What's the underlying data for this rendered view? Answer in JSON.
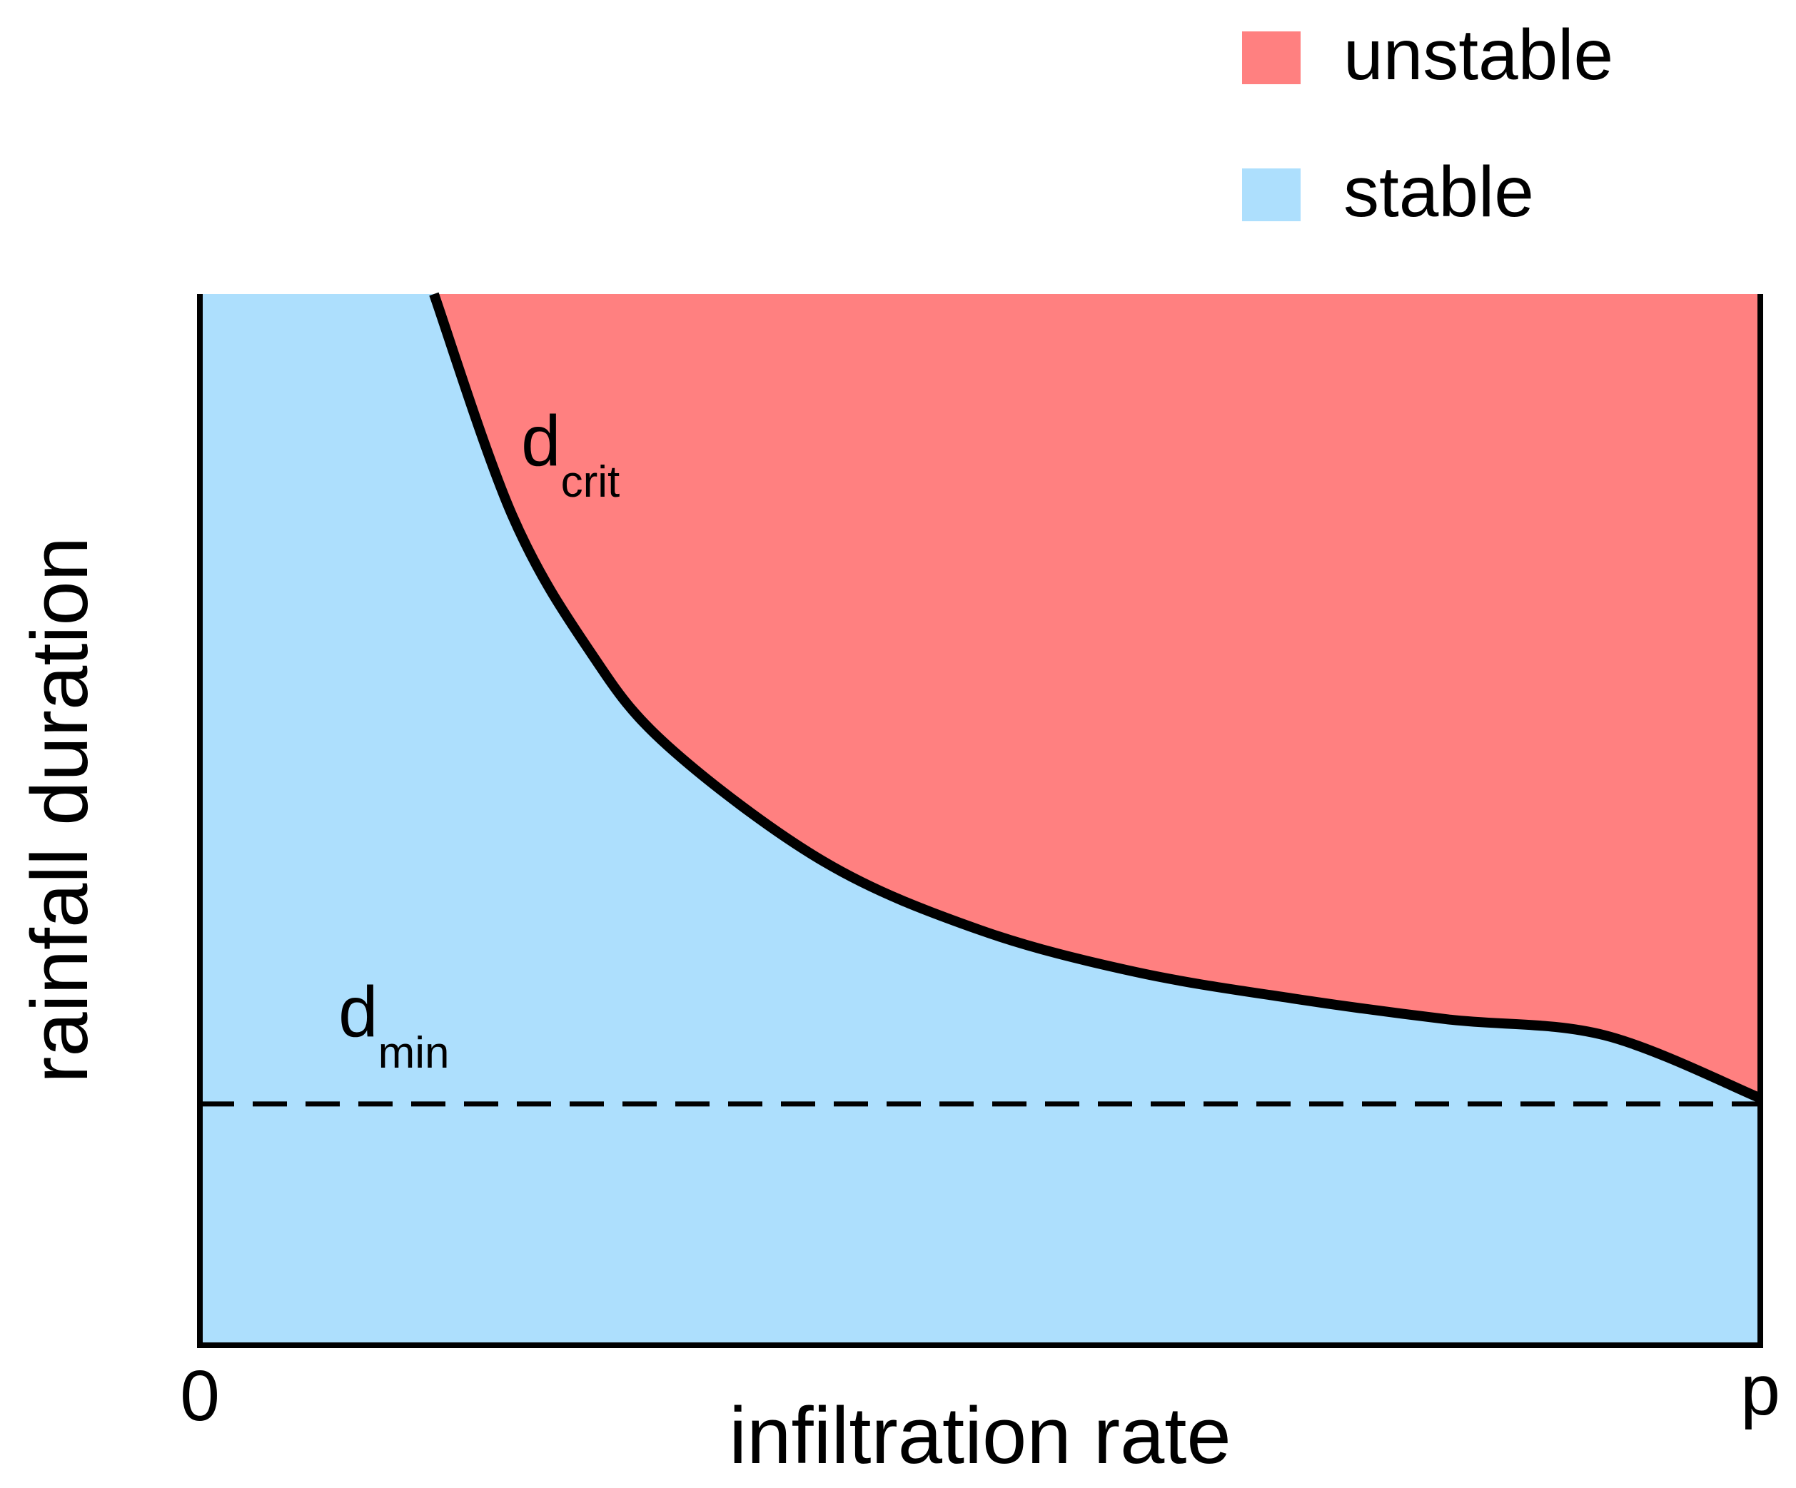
{
  "chart_data": {
    "type": "area",
    "xlabel": "infiltration rate",
    "ylabel": "rainfall duration",
    "x_tick_labels": [
      "0",
      "p"
    ],
    "legend": {
      "placement": "top-right",
      "entries": [
        {
          "label": "unstable",
          "color": "#FF8080"
        },
        {
          "label": "stable",
          "color": "#ADDFFD"
        }
      ]
    },
    "regions": [
      {
        "name": "unstable",
        "color": "#FF8080",
        "position": "above d_crit curve"
      },
      {
        "name": "stable",
        "color": "#ADDFFD",
        "position": "below d_crit curve"
      }
    ],
    "curves": [
      {
        "label_main": "d",
        "label_sub": "crit",
        "style": "solid",
        "color": "#000000",
        "description_x": [
          0.15,
          0.2,
          0.25,
          0.3,
          0.4,
          0.5,
          0.6,
          0.7,
          0.8,
          0.9,
          1.0
        ],
        "description_y": [
          1.0,
          0.79,
          0.66,
          0.57,
          0.46,
          0.395,
          0.355,
          0.33,
          0.31,
          0.295,
          0.235
        ]
      },
      {
        "label_main": "d",
        "label_sub": "min",
        "style": "dashed",
        "color": "#000000",
        "y": 0.235
      }
    ],
    "xlim": [
      0,
      1
    ],
    "ylim": [
      0,
      1
    ],
    "grid": false
  }
}
